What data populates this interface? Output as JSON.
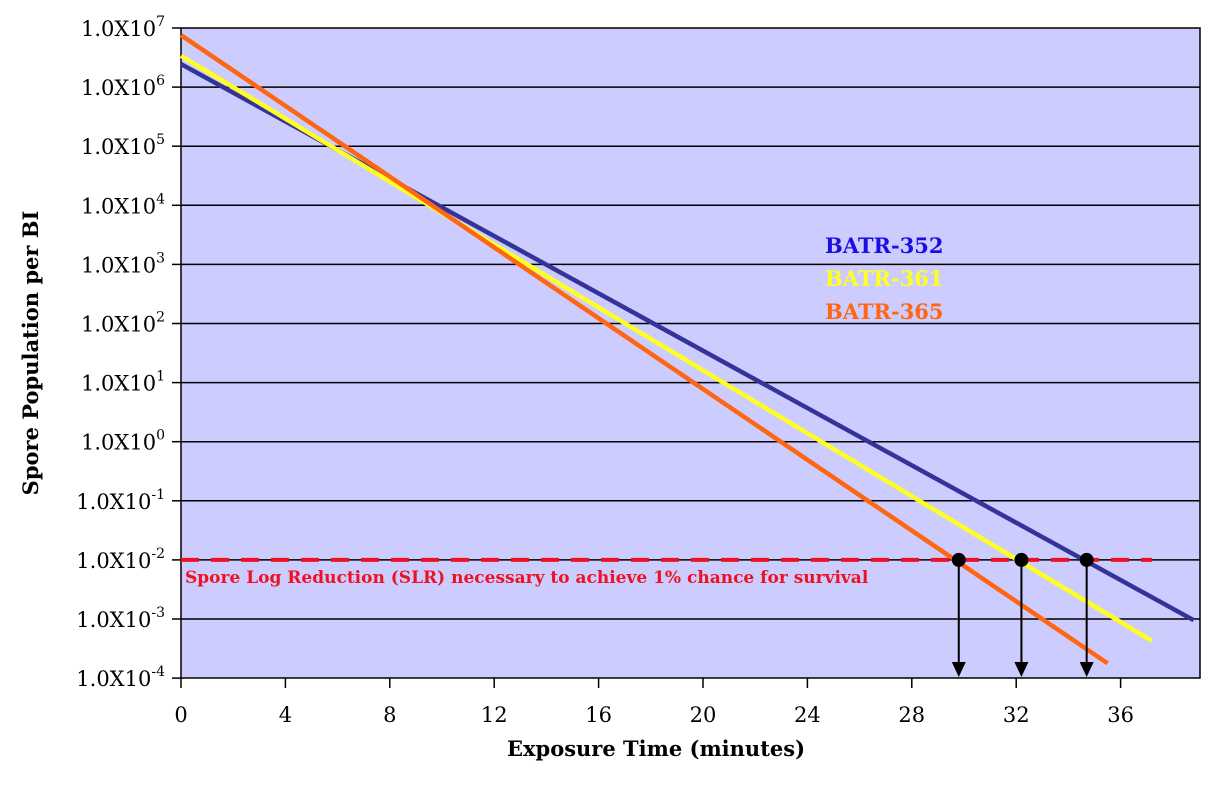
{
  "chart_data": {
    "type": "line",
    "title": "",
    "xlabel": "Exposure Time (minutes)",
    "ylabel": "Spore Population per BI",
    "xlim": [
      0,
      39
    ],
    "ylim_log10": [
      -4,
      7
    ],
    "yscale": "log",
    "grid": "horizontal",
    "xticks": [
      0,
      4,
      8,
      12,
      16,
      20,
      24,
      28,
      32,
      36
    ],
    "yticks": [
      {
        "exp": 7,
        "label": "1.0X10",
        "sup": "7"
      },
      {
        "exp": 6,
        "label": "1.0X10",
        "sup": "6"
      },
      {
        "exp": 5,
        "label": "1.0X10",
        "sup": "5"
      },
      {
        "exp": 4,
        "label": "1.0X10",
        "sup": "4"
      },
      {
        "exp": 3,
        "label": "1.0X10",
        "sup": "3"
      },
      {
        "exp": 2,
        "label": "1.0X10",
        "sup": "2"
      },
      {
        "exp": 1,
        "label": "1.0X10",
        "sup": "1"
      },
      {
        "exp": 0,
        "label": "1.0X10",
        "sup": "0"
      },
      {
        "exp": -1,
        "label": "1.0X10",
        "sup": "-1"
      },
      {
        "exp": -2,
        "label": "1.0X10",
        "sup": "-2"
      },
      {
        "exp": -3,
        "label": "1.0X10",
        "sup": "-3"
      },
      {
        "exp": -4,
        "label": "1.0X10",
        "sup": "-4"
      }
    ],
    "series": [
      {
        "name": "BATR-352",
        "color": "#333399",
        "label_color": "#1a0ee0",
        "points": [
          [
            0,
            6.39
          ],
          [
            38.8,
            -3.02
          ]
        ]
      },
      {
        "name": "BATR-361",
        "color": "#ffff22",
        "label_color": "#ffff22",
        "points": [
          [
            0,
            6.53
          ],
          [
            37.2,
            -3.37
          ]
        ]
      },
      {
        "name": "BATR-365",
        "color": "#ff6611",
        "label_color": "#ff6611",
        "points": [
          [
            0,
            6.88
          ],
          [
            35.5,
            -3.75
          ]
        ]
      }
    ],
    "threshold": {
      "log10": -2,
      "x_end": 37.2,
      "color": "#ee1122",
      "label": "Spore Log Reduction (SLR) necessary to achieve 1% chance for survival"
    },
    "markers": [
      {
        "series": "BATR-365",
        "x": 29.8,
        "log10": -2
      },
      {
        "series": "BATR-361",
        "x": 32.2,
        "log10": -2
      },
      {
        "series": "BATR-352",
        "x": 34.7,
        "log10": -2
      }
    ],
    "background": "#ccccff",
    "legend_position": "center-right"
  }
}
